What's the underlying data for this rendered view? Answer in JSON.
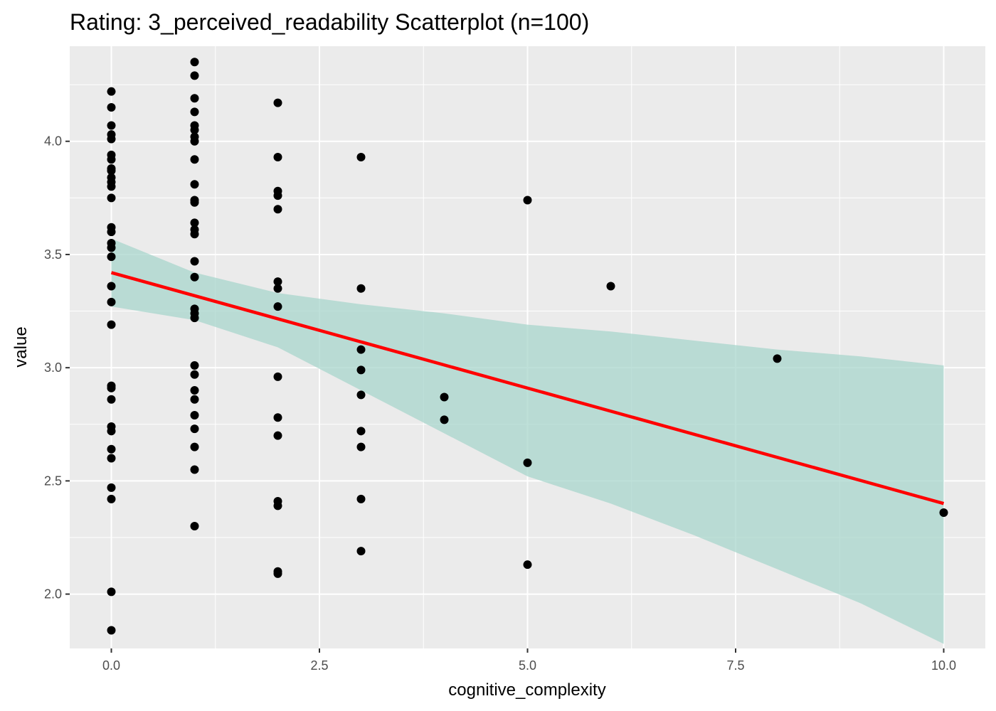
{
  "chart_data": {
    "type": "scatter",
    "title": "Rating: 3_perceived_readability Scatterplot (n=100)",
    "xlabel": "cognitive_complexity",
    "ylabel": "value",
    "xlim": [
      -0.5,
      10.5
    ],
    "ylim": [
      1.76,
      4.42
    ],
    "x_ticks": [
      0,
      2.5,
      5,
      7.5,
      10
    ],
    "x_tick_labels": [
      "0.0",
      "2.5",
      "5.0",
      "7.5",
      "10.0"
    ],
    "y_ticks": [
      2.0,
      2.5,
      3.0,
      3.5,
      4.0
    ],
    "y_tick_labels": [
      "2.0",
      "2.5",
      "3.0",
      "3.5",
      "4.0"
    ],
    "grid": true,
    "colors": {
      "panel_background": "#ebebeb",
      "grid": "#ffffff",
      "points": "#000000",
      "regression_line": "#ff0000",
      "confidence_band": "#a8d5cc"
    },
    "series": [
      {
        "type": "scatter",
        "points": [
          [
            0,
            4.22
          ],
          [
            0,
            4.15
          ],
          [
            0,
            4.07
          ],
          [
            0,
            4.03
          ],
          [
            0,
            4.01
          ],
          [
            0,
            3.94
          ],
          [
            0,
            3.92
          ],
          [
            0,
            3.88
          ],
          [
            0,
            3.87
          ],
          [
            0,
            3.84
          ],
          [
            0,
            3.82
          ],
          [
            0,
            3.8
          ],
          [
            0,
            3.75
          ],
          [
            0,
            3.62
          ],
          [
            0,
            3.6
          ],
          [
            0,
            3.55
          ],
          [
            0,
            3.53
          ],
          [
            0,
            3.49
          ],
          [
            0,
            3.36
          ],
          [
            0,
            3.29
          ],
          [
            0,
            3.19
          ],
          [
            0,
            2.92
          ],
          [
            0,
            2.91
          ],
          [
            0,
            2.86
          ],
          [
            0,
            2.74
          ],
          [
            0,
            2.72
          ],
          [
            0,
            2.64
          ],
          [
            0,
            2.6
          ],
          [
            0,
            2.47
          ],
          [
            0,
            2.42
          ],
          [
            0,
            2.01
          ],
          [
            0,
            1.84
          ],
          [
            1,
            4.35
          ],
          [
            1,
            4.29
          ],
          [
            1,
            4.19
          ],
          [
            1,
            4.13
          ],
          [
            1,
            4.07
          ],
          [
            1,
            4.05
          ],
          [
            1,
            4.02
          ],
          [
            1,
            4.0
          ],
          [
            1,
            3.92
          ],
          [
            1,
            3.81
          ],
          [
            1,
            3.74
          ],
          [
            1,
            3.73
          ],
          [
            1,
            3.64
          ],
          [
            1,
            3.61
          ],
          [
            1,
            3.59
          ],
          [
            1,
            3.47
          ],
          [
            1,
            3.4
          ],
          [
            1,
            3.26
          ],
          [
            1,
            3.24
          ],
          [
            1,
            3.22
          ],
          [
            1,
            3.01
          ],
          [
            1,
            2.97
          ],
          [
            1,
            2.9
          ],
          [
            1,
            2.86
          ],
          [
            1,
            2.79
          ],
          [
            1,
            2.73
          ],
          [
            1,
            2.65
          ],
          [
            1,
            2.55
          ],
          [
            1,
            2.3
          ],
          [
            2,
            4.17
          ],
          [
            2,
            3.93
          ],
          [
            2,
            3.78
          ],
          [
            2,
            3.76
          ],
          [
            2,
            3.7
          ],
          [
            2,
            3.38
          ],
          [
            2,
            3.35
          ],
          [
            2,
            3.27
          ],
          [
            2,
            2.96
          ],
          [
            2,
            2.78
          ],
          [
            2,
            2.7
          ],
          [
            2,
            2.41
          ],
          [
            2,
            2.39
          ],
          [
            2,
            2.1
          ],
          [
            2,
            2.09
          ],
          [
            3,
            3.93
          ],
          [
            3,
            3.35
          ],
          [
            3,
            3.08
          ],
          [
            3,
            2.99
          ],
          [
            3,
            2.88
          ],
          [
            3,
            2.72
          ],
          [
            3,
            2.65
          ],
          [
            3,
            2.42
          ],
          [
            3,
            2.19
          ],
          [
            4,
            2.87
          ],
          [
            4,
            2.77
          ],
          [
            5,
            3.74
          ],
          [
            5,
            2.58
          ],
          [
            5,
            2.13
          ],
          [
            6,
            3.36
          ],
          [
            8,
            3.04
          ],
          [
            10,
            2.36
          ]
        ]
      },
      {
        "type": "line",
        "name": "",
        "x": [
          0,
          10
        ],
        "y": [
          3.42,
          2.4
        ]
      },
      {
        "type": "area",
        "name": "",
        "x": [
          0,
          1,
          2,
          3,
          4,
          5,
          6,
          7,
          8,
          9,
          10
        ],
        "y_lower": [
          3.27,
          3.21,
          3.09,
          2.9,
          2.71,
          2.52,
          2.4,
          2.26,
          2.11,
          1.96,
          1.78
        ],
        "y_upper": [
          3.57,
          3.42,
          3.33,
          3.28,
          3.24,
          3.19,
          3.16,
          3.12,
          3.08,
          3.05,
          3.01
        ]
      }
    ]
  }
}
